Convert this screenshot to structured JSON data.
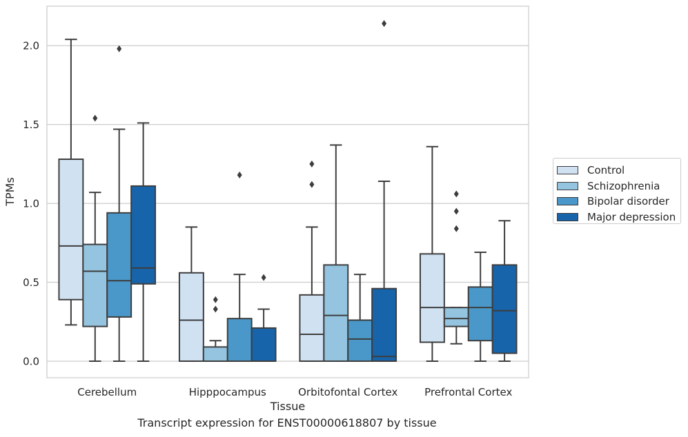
{
  "chart_data": {
    "type": "boxplot",
    "xlabel": "Tissue",
    "ylabel": "TPMs",
    "caption": "Transcript expression for ENST00000618807 by tissue",
    "ylim": [
      -0.105,
      2.25
    ],
    "yticks": [
      "0.0",
      "0.5",
      "1.0",
      "1.5",
      "2.0"
    ],
    "grid": "horizontal",
    "legend_position": "right",
    "categories": [
      "Cerebellum",
      "Hipppocampus",
      "Orbitofontal Cortex",
      "Prefrontal Cortex"
    ],
    "series": [
      {
        "name": "Control",
        "color": "#d0e1f2",
        "boxes": [
          {
            "whislo": 0.23,
            "q1": 0.39,
            "med": 0.73,
            "q3": 1.28,
            "whishi": 2.04,
            "fliers": []
          },
          {
            "whislo": 0.0,
            "q1": 0.0,
            "med": 0.26,
            "q3": 0.56,
            "whishi": 0.85,
            "fliers": []
          },
          {
            "whislo": 0.0,
            "q1": 0.0,
            "med": 0.17,
            "q3": 0.42,
            "whishi": 0.85,
            "fliers": [
              1.12,
              1.25
            ]
          },
          {
            "whislo": 0.0,
            "q1": 0.12,
            "med": 0.34,
            "q3": 0.68,
            "whishi": 1.36,
            "fliers": []
          }
        ]
      },
      {
        "name": "Schizophrenia",
        "color": "#94c4df",
        "boxes": [
          {
            "whislo": 0.0,
            "q1": 0.22,
            "med": 0.57,
            "q3": 0.74,
            "whishi": 1.07,
            "fliers": [
              1.54
            ]
          },
          {
            "whislo": 0.0,
            "q1": 0.0,
            "med": 0.0,
            "q3": 0.09,
            "whishi": 0.13,
            "fliers": [
              0.33,
              0.39
            ]
          },
          {
            "whislo": 0.0,
            "q1": 0.0,
            "med": 0.29,
            "q3": 0.61,
            "whishi": 1.37,
            "fliers": []
          },
          {
            "whislo": 0.11,
            "q1": 0.22,
            "med": 0.27,
            "q3": 0.34,
            "whishi": 0.34,
            "fliers": [
              0.84,
              0.95,
              1.06
            ]
          }
        ]
      },
      {
        "name": "Bipolar disorder",
        "color": "#4a98c9",
        "boxes": [
          {
            "whislo": 0.0,
            "q1": 0.28,
            "med": 0.51,
            "q3": 0.94,
            "whishi": 1.47,
            "fliers": [
              1.98
            ]
          },
          {
            "whislo": 0.0,
            "q1": 0.0,
            "med": 0.0,
            "q3": 0.27,
            "whishi": 0.55,
            "fliers": [
              1.18
            ]
          },
          {
            "whislo": 0.0,
            "q1": 0.0,
            "med": 0.14,
            "q3": 0.26,
            "whishi": 0.55,
            "fliers": []
          },
          {
            "whislo": 0.0,
            "q1": 0.13,
            "med": 0.34,
            "q3": 0.47,
            "whishi": 0.69,
            "fliers": []
          }
        ]
      },
      {
        "name": "Major depression",
        "color": "#1764ab",
        "boxes": [
          {
            "whislo": 0.0,
            "q1": 0.49,
            "med": 0.59,
            "q3": 1.11,
            "whishi": 1.51,
            "fliers": []
          },
          {
            "whislo": 0.0,
            "q1": 0.0,
            "med": 0.0,
            "q3": 0.21,
            "whishi": 0.33,
            "fliers": [
              0.53
            ]
          },
          {
            "whislo": 0.0,
            "q1": 0.0,
            "med": 0.03,
            "q3": 0.46,
            "whishi": 1.14,
            "fliers": [
              2.14
            ]
          },
          {
            "whislo": 0.0,
            "q1": 0.05,
            "med": 0.32,
            "q3": 0.61,
            "whishi": 0.89,
            "fliers": []
          }
        ]
      }
    ]
  }
}
